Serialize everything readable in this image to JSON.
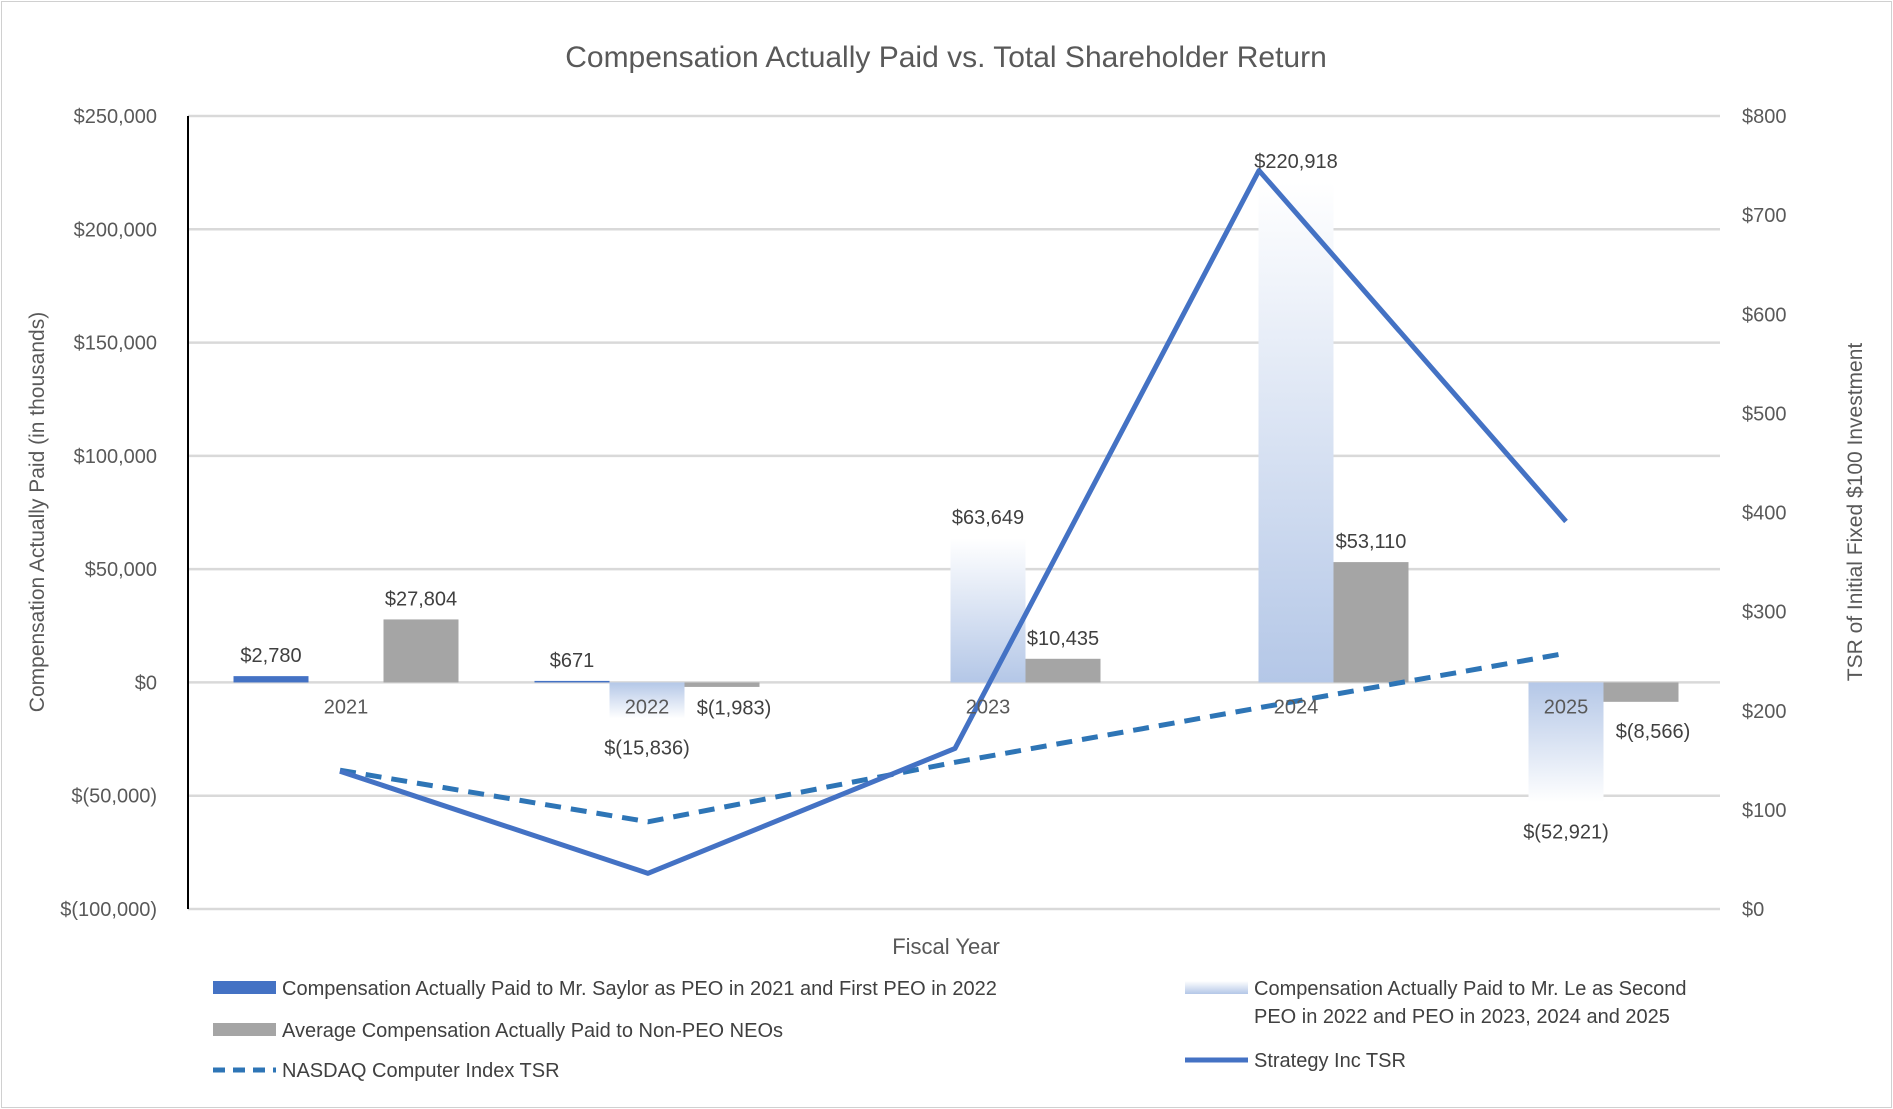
{
  "chart_data": {
    "type": "bar",
    "title": "Compensation Actually Paid vs. Total Shareholder Return",
    "xlabel": "Fiscal Year",
    "ylabel": "Compensation Actually Paid (in thousands)",
    "y2label": "TSR of Initial Fixed $100 Investment",
    "categories": [
      "2021",
      "2022",
      "2023",
      "2024",
      "2025"
    ],
    "ylim": [
      -100000,
      250000
    ],
    "y2lim": [
      0,
      800
    ],
    "y_ticks": [
      {
        "value": 250000,
        "label": "$250,000"
      },
      {
        "value": 200000,
        "label": "$200,000"
      },
      {
        "value": 150000,
        "label": "$150,000"
      },
      {
        "value": 100000,
        "label": "$100,000"
      },
      {
        "value": 50000,
        "label": "$50,000"
      },
      {
        "value": 0,
        "label": "$0"
      },
      {
        "value": -50000,
        "label": "$(50,000)"
      },
      {
        "value": -100000,
        "label": "$(100,000)"
      }
    ],
    "y2_ticks": [
      {
        "value": 800,
        "label": "$800"
      },
      {
        "value": 700,
        "label": "$700"
      },
      {
        "value": 600,
        "label": "$600"
      },
      {
        "value": 500,
        "label": "$500"
      },
      {
        "value": 400,
        "label": "$400"
      },
      {
        "value": 300,
        "label": "$300"
      },
      {
        "value": 200,
        "label": "$200"
      },
      {
        "value": 100,
        "label": "$100"
      },
      {
        "value": 0,
        "label": "$0"
      }
    ],
    "series": [
      {
        "name": "Compensation Actually Paid to Mr. Saylor as PEO in 2021 and First PEO in 2022",
        "kind": "bar",
        "axis": "left",
        "color": "#4472C4",
        "values": [
          2780,
          671,
          null,
          null,
          null
        ],
        "labels": [
          "$2,780",
          "$671",
          "",
          "",
          ""
        ]
      },
      {
        "name": "Compensation Actually Paid to Mr. Le as Second PEO in 2022 and PEO in 2023, 2024 and 2025",
        "kind": "bar-gradient",
        "axis": "left",
        "color": "#B4C7E7",
        "values": [
          null,
          -15836,
          63649,
          220918,
          -52921
        ],
        "labels": [
          "",
          "$(15,836)",
          "$63,649",
          "$220,918",
          "$(52,921)"
        ]
      },
      {
        "name": "Average Compensation Actually Paid to Non-PEO NEOs",
        "kind": "bar",
        "axis": "left",
        "color": "#A5A5A5",
        "values": [
          27804,
          -1983,
          10435,
          53110,
          -8566
        ],
        "labels": [
          "$27,804",
          "$(1,983)",
          "$10,435",
          "$53,110",
          "$(8,566)"
        ]
      },
      {
        "name": "NASDAQ Computer Index TSR",
        "kind": "dashed-line",
        "axis": "right",
        "color": "#2E75B6",
        "values": [
          140,
          88,
          148,
          203,
          258
        ]
      },
      {
        "name": "Strategy Inc TSR",
        "kind": "line",
        "axis": "right",
        "color": "#4472C4",
        "values": [
          139,
          36,
          162,
          745,
          391
        ]
      }
    ],
    "legend_position": "bottom"
  }
}
